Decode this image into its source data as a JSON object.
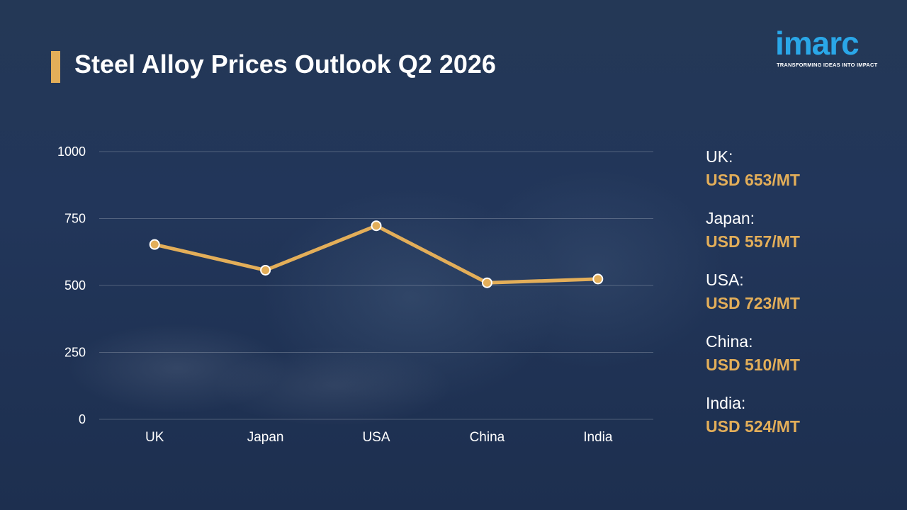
{
  "title": "Steel Alloy Prices Outlook Q2 2026",
  "logo": {
    "text": "imarc",
    "tagline": "TRANSFORMING IDEAS INTO IMPACT"
  },
  "colors": {
    "accent": "#e3ae59",
    "background": "#1f3150",
    "logo": "#2aa7e8",
    "text": "#ffffff"
  },
  "legend": [
    {
      "country": "UK:",
      "value": "USD 653/MT"
    },
    {
      "country": "Japan:",
      "value": "USD 557/MT"
    },
    {
      "country": "USA:",
      "value": "USD 723/MT"
    },
    {
      "country": "China:",
      "value": "USD 510/MT"
    },
    {
      "country": "India:",
      "value": "USD 524/MT"
    }
  ],
  "chart_data": {
    "type": "line",
    "title": "Steel Alloy Prices Outlook Q2 2026",
    "categories": [
      "UK",
      "Japan",
      "USA",
      "China",
      "India"
    ],
    "values": [
      653,
      557,
      723,
      510,
      524
    ],
    "ylim": [
      0,
      1000
    ],
    "yticks": [
      0,
      250,
      500,
      750,
      1000
    ],
    "xlabel": "",
    "ylabel": "",
    "grid": true,
    "legend_placement": "right"
  }
}
